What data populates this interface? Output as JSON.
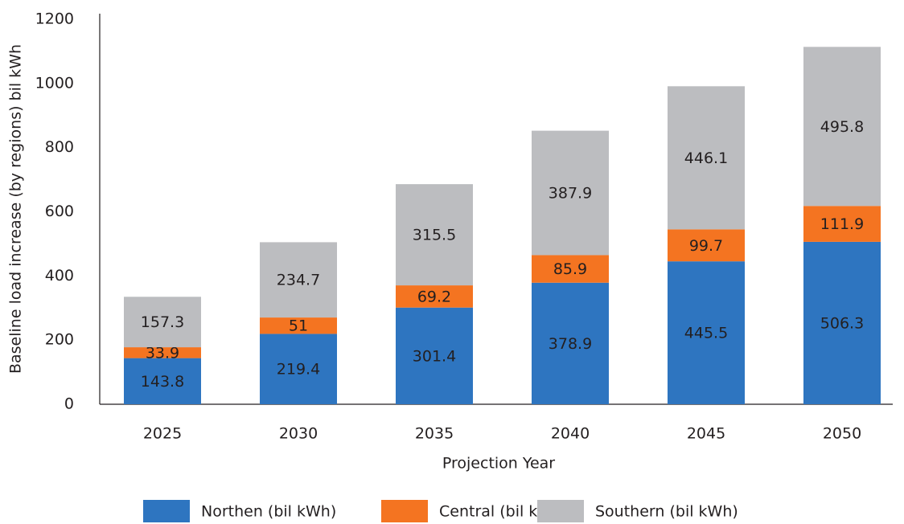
{
  "chart_data": {
    "type": "stacked_bar",
    "x_label": "Projection Year",
    "y_label": "Baseline load increase (by regions) bil kWh",
    "categories": [
      "2025",
      "2030",
      "2035",
      "2040",
      "2045",
      "2050"
    ],
    "series": [
      {
        "name": "Northen (bil kWh)",
        "color": "#2e75c0",
        "values": [
          143.8,
          219.4,
          301.4,
          378.9,
          445.5,
          506.3
        ]
      },
      {
        "name": "Central (bil kWh)",
        "color": "#f47421",
        "values": [
          33.9,
          51,
          69.2,
          85.9,
          99.7,
          111.9
        ]
      },
      {
        "name": "Southern (bil kWh)",
        "color": "#bcbdc0",
        "values": [
          157.3,
          234.7,
          315.5,
          387.9,
          446.1,
          495.8
        ]
      }
    ],
    "ylim": [
      0,
      1200
    ],
    "yticks": [
      0,
      200,
      400,
      600,
      800,
      1000,
      1200
    ],
    "grid": false,
    "legend": "bottom"
  }
}
